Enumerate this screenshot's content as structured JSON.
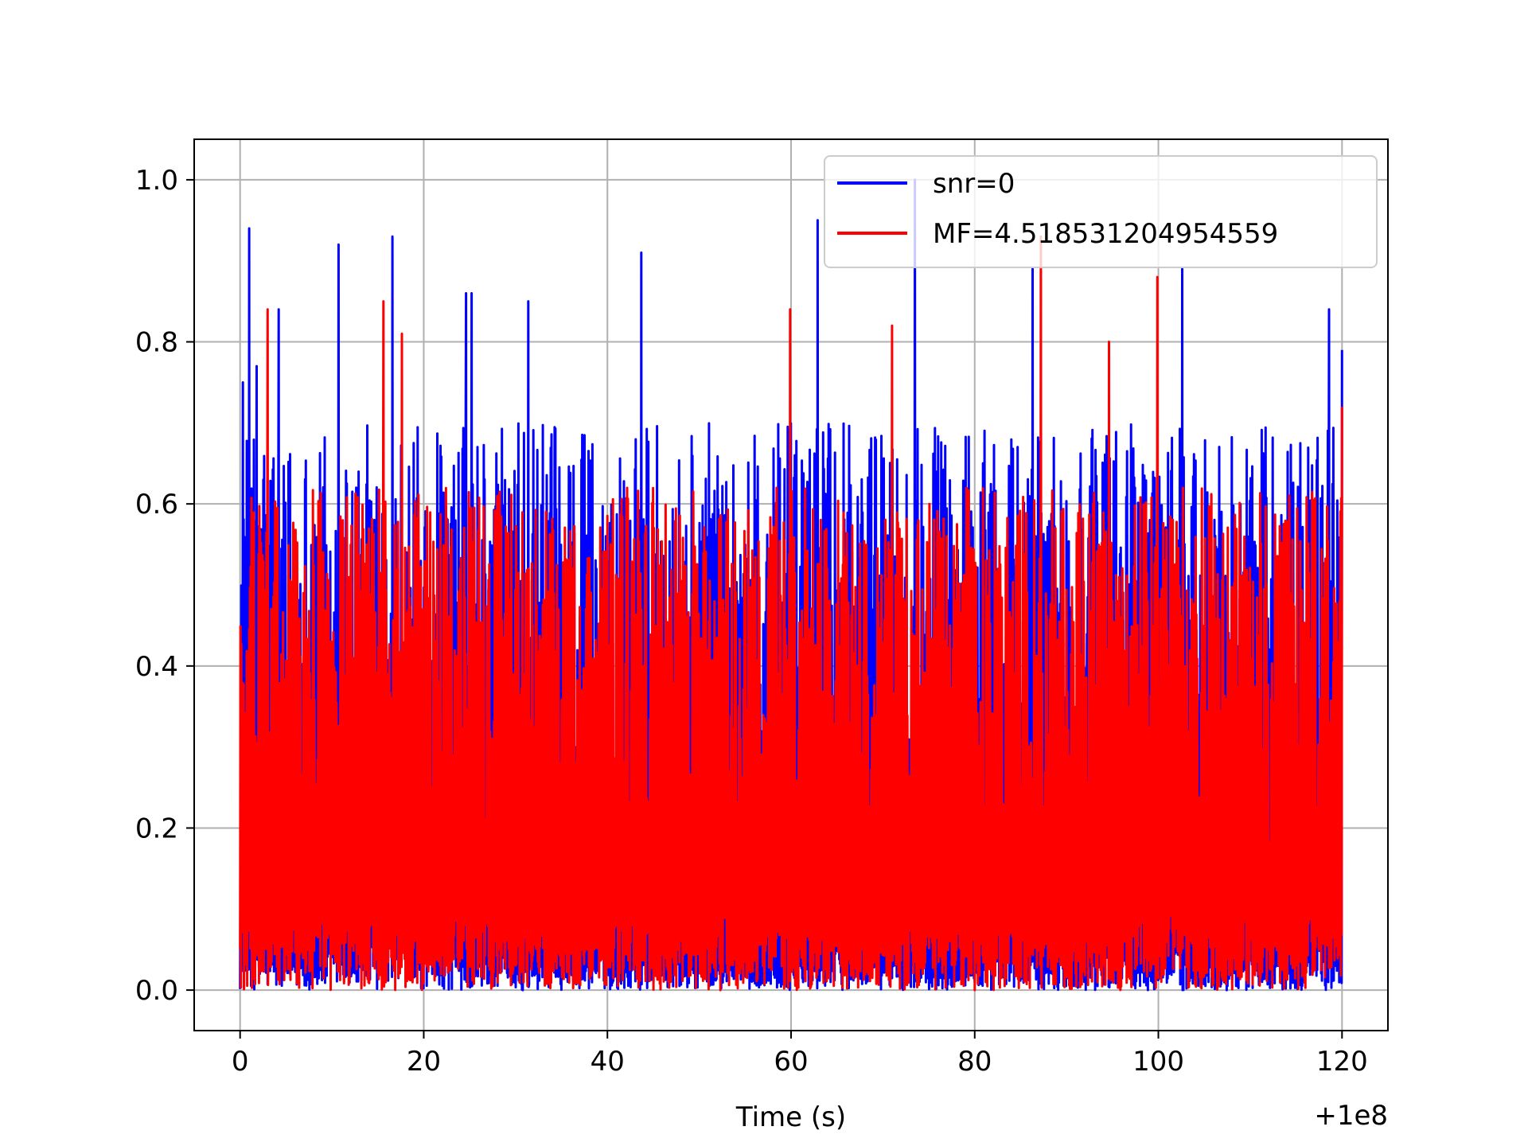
{
  "chart_data": {
    "type": "line",
    "title": "",
    "xlabel": "Time (s)",
    "ylabel": "",
    "x_offset_label": "+1e8",
    "xlim": [
      -5,
      125
    ],
    "ylim": [
      -0.05,
      1.05
    ],
    "xticks": [
      0,
      20,
      40,
      60,
      80,
      100,
      120
    ],
    "xtick_labels": [
      "0",
      "20",
      "40",
      "60",
      "80",
      "100",
      "120"
    ],
    "yticks": [
      0.0,
      0.2,
      0.4,
      0.6,
      0.8,
      1.0
    ],
    "ytick_labels": [
      "0.0",
      "0.2",
      "0.4",
      "0.6",
      "0.8",
      "1.0"
    ],
    "grid": true,
    "legend_position": "top-right",
    "x_range": [
      0,
      120
    ],
    "series": [
      {
        "name": "snr=0",
        "color": "#0000ff",
        "peaks": [
          {
            "x": 0.3,
            "y": 0.75
          },
          {
            "x": 1.0,
            "y": 0.94
          },
          {
            "x": 1.8,
            "y": 0.77
          },
          {
            "x": 4.2,
            "y": 0.84
          },
          {
            "x": 10.7,
            "y": 0.92
          },
          {
            "x": 16.6,
            "y": 0.93
          },
          {
            "x": 24.6,
            "y": 0.86
          },
          {
            "x": 25.2,
            "y": 0.86
          },
          {
            "x": 31.4,
            "y": 0.85
          },
          {
            "x": 43.7,
            "y": 0.91
          },
          {
            "x": 62.9,
            "y": 0.95
          },
          {
            "x": 73.5,
            "y": 1.0
          },
          {
            "x": 86.3,
            "y": 0.89
          },
          {
            "x": 102.6,
            "y": 0.89
          },
          {
            "x": 118.6,
            "y": 0.84
          },
          {
            "x": 120.0,
            "y": 0.79
          }
        ]
      },
      {
        "name": "MF=4.518531204954559",
        "color": "#ff0000",
        "peaks": [
          {
            "x": 3.0,
            "y": 0.84
          },
          {
            "x": 15.6,
            "y": 0.85
          },
          {
            "x": 17.6,
            "y": 0.81
          },
          {
            "x": 59.9,
            "y": 0.84
          },
          {
            "x": 71.0,
            "y": 0.82
          },
          {
            "x": 87.2,
            "y": 0.93
          },
          {
            "x": 94.6,
            "y": 0.8
          },
          {
            "x": 99.9,
            "y": 0.88
          },
          {
            "x": 120.0,
            "y": 0.72
          }
        ]
      }
    ]
  }
}
